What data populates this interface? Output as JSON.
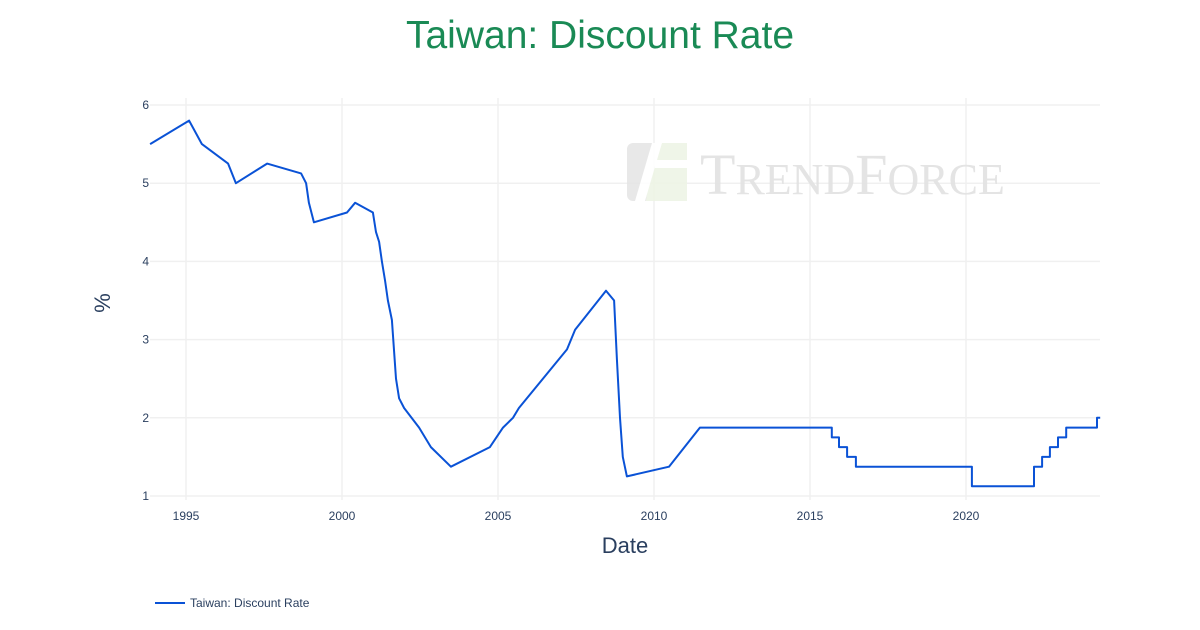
{
  "chart_data": {
    "type": "line",
    "title": "Taiwan: Discount Rate",
    "xlabel": "Date",
    "ylabel": "%",
    "xlim": [
      1993.85,
      2024.3
    ],
    "ylim": [
      1,
      6
    ],
    "x_ticks": [
      "1995",
      "2000",
      "2005",
      "2010",
      "2015",
      "2020"
    ],
    "y_ticks": [
      "1",
      "2",
      "3",
      "4",
      "5",
      "6"
    ],
    "grid": true,
    "legend_position": "bottom-left",
    "watermark": "TrendForce",
    "series": [
      {
        "name": "Taiwan: Discount Rate",
        "color": "#0a52d6",
        "x": [
          1993.85,
          1995.1,
          1995.51,
          1996.35,
          1996.6,
          1997.6,
          1998.69,
          1998.85,
          1998.94,
          1999.1,
          2000.16,
          2000.42,
          2000.99,
          2001.09,
          2001.19,
          2001.28,
          2001.38,
          2001.47,
          2001.6,
          2001.73,
          2001.83,
          2001.99,
          2002.47,
          2002.85,
          2003.49,
          2004.74,
          2005.16,
          2005.48,
          2005.67,
          2007.21,
          2007.47,
          2008.46,
          2008.72,
          2008.81,
          2008.91,
          2009.0,
          2009.13,
          2010.48,
          2011.47,
          2015.7,
          2015.7,
          2015.93,
          2015.93,
          2016.19,
          2016.19,
          2016.47,
          2016.47,
          2020.19,
          2020.19,
          2022.18,
          2022.18,
          2022.44,
          2022.44,
          2022.69,
          2022.69,
          2022.95,
          2022.95,
          2023.21,
          2023.21,
          2024.2,
          2024.2,
          2024.3
        ],
        "y": [
          5.5,
          5.8,
          5.5,
          5.25,
          5.0,
          5.25,
          5.125,
          5.0,
          4.75,
          4.5,
          4.625,
          4.75,
          4.625,
          4.375,
          4.25,
          4.0,
          3.75,
          3.5,
          3.25,
          2.5,
          2.25,
          2.125,
          1.875,
          1.625,
          1.375,
          1.625,
          1.875,
          2.0,
          2.125,
          2.875,
          3.125,
          3.625,
          3.5,
          2.75,
          2.0,
          1.5,
          1.25,
          1.375,
          1.875,
          1.875,
          1.75,
          1.75,
          1.625,
          1.625,
          1.5,
          1.5,
          1.375,
          1.375,
          1.125,
          1.125,
          1.375,
          1.375,
          1.5,
          1.5,
          1.625,
          1.625,
          1.75,
          1.75,
          1.875,
          1.875,
          2.0,
          2.0
        ]
      }
    ]
  }
}
